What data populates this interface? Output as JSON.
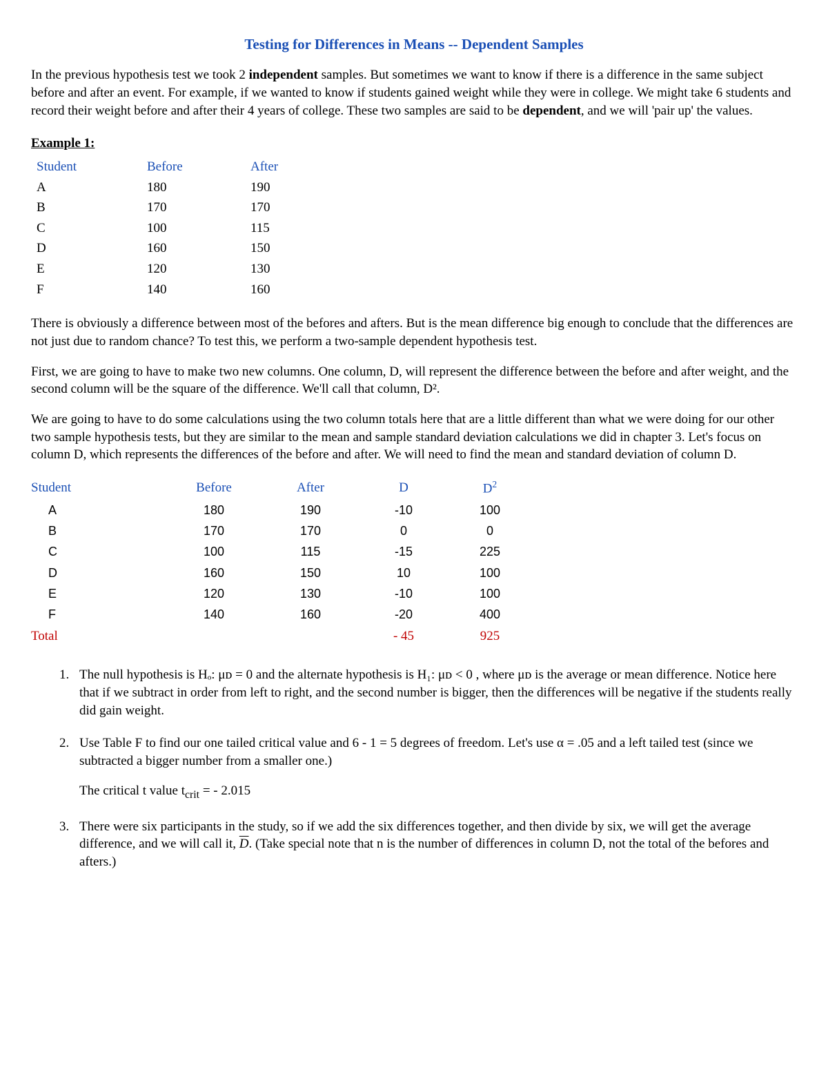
{
  "title": "Testing for Differences in Means -- Dependent Samples",
  "intro_p1a": "In the previous hypothesis test we took 2 ",
  "intro_bold1": "independent",
  "intro_p1b": " samples. But sometimes we want to know if there is a difference in the same subject before and after an event. For example, if we wanted to know if students gained weight while they were in college. We might take 6 students and record their weight before and after their 4 years of college. These two samples are said to be ",
  "intro_bold2": "dependent",
  "intro_p1c": ", and we will 'pair up' the values.",
  "example_label": "Example 1",
  "table1": {
    "headers": {
      "student": "Student",
      "before": "Before",
      "after": "After"
    },
    "rows": [
      {
        "student": "A",
        "before": "180",
        "after": "190"
      },
      {
        "student": "B",
        "before": "170",
        "after": "170"
      },
      {
        "student": "C",
        "before": "100",
        "after": "115"
      },
      {
        "student": "D",
        "before": "160",
        "after": "150"
      },
      {
        "student": "E",
        "before": "120",
        "after": "130"
      },
      {
        "student": "F",
        "before": "140",
        "after": "160"
      }
    ]
  },
  "para2": "There is obviously a difference between most of the befores and afters. But is the mean difference big enough to conclude that the differences are not just due to random chance? To test this, we perform a two-sample dependent hypothesis test.",
  "para3": "First, we are going to have to make two new columns.  One column, D, will represent the difference between the before and after weight, and the second column will be the square of the difference.  We'll call that column, D².",
  "para4": "We are going to have to do some calculations using the two column totals here that are a little different than what we were doing for our other two sample hypothesis tests, but they are similar to the mean and sample standard deviation calculations we did in chapter 3.  Let's focus on column D, which represents the differences of the before and after.  We will need to find the mean and standard deviation of column D.",
  "table2": {
    "headers": {
      "student": "Student",
      "before": "Before",
      "after": "After",
      "d": "D",
      "d2_base": "D",
      "d2_sup": "2"
    },
    "rows": [
      {
        "student": "A",
        "before": "180",
        "after": "190",
        "d": "-10",
        "d2": "100"
      },
      {
        "student": "B",
        "before": "170",
        "after": "170",
        "d": "0",
        "d2": "0"
      },
      {
        "student": "C",
        "before": "100",
        "after": "115",
        "d": "-15",
        "d2": "225"
      },
      {
        "student": "D",
        "before": "160",
        "after": "150",
        "d": "10",
        "d2": "100"
      },
      {
        "student": "E",
        "before": "120",
        "after": "130",
        "d": "-10",
        "d2": "100"
      },
      {
        "student": "F",
        "before": "140",
        "after": "160",
        "d": "-20",
        "d2": "400"
      }
    ],
    "total_label": "Total",
    "total_d": "- 45",
    "total_d2": "925"
  },
  "step1": "The null hypothesis is Hₒ: μᴅ = 0  and the alternate hypothesis is H₁: μᴅ < 0 , where μᴅ is the average or mean difference. Notice here that if we subtract in order from left to right, and the second number is bigger, then the differences will be negative if the students really did gain weight.",
  "step2": "Use Table F to find our one tailed critical value and 6 - 1 = 5 degrees of freedom. Let's use  α = .05 and a left tailed test (since we subtracted a bigger number from a smaller one.)",
  "step2_sub": "The critical t value t",
  "step2_crit": "crit",
  "step2_val": " = - 2.015",
  "step3a": "There were six participants in the study, so if we add the six differences together, and then divide by six, we will get the average difference, and we will call it, ",
  "step3_dbar": "D",
  "step3b": ".  (Take special note that n is the number of differences in column D, not the total of the befores and afters.)"
}
